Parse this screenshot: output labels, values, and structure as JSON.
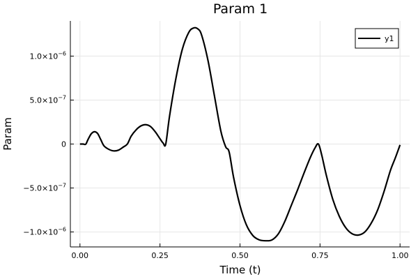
{
  "chart_data": {
    "type": "line",
    "title": "Param 1",
    "xlabel": "Time (t)",
    "ylabel": "Param",
    "xlim": [
      -0.03,
      1.03
    ],
    "ylim": [
      -1.17e-06,
      1.4e-06
    ],
    "x_ticks": [
      {
        "value": 0.0,
        "label": "0.00"
      },
      {
        "value": 0.25,
        "label": "0.25"
      },
      {
        "value": 0.5,
        "label": "0.50"
      },
      {
        "value": 0.75,
        "label": "0.75"
      },
      {
        "value": 1.0,
        "label": "1.00"
      }
    ],
    "y_ticks": [
      {
        "value": -1e-06,
        "mantissa": "−1.0×10",
        "exp": "−6"
      },
      {
        "value": -5e-07,
        "mantissa": "−5.0×10",
        "exp": "−7"
      },
      {
        "value": 0,
        "mantissa": "0",
        "exp": ""
      },
      {
        "value": 5e-07,
        "mantissa": "5.0×10",
        "exp": "−7"
      },
      {
        "value": 1e-06,
        "mantissa": "1.0×10",
        "exp": "−6"
      }
    ],
    "grid": true,
    "legend": {
      "position": "top-right",
      "entries": [
        "y1"
      ]
    },
    "colors": {
      "series": "#000000",
      "grid": "#e6e6e6"
    },
    "series": [
      {
        "name": "y1",
        "x": [
          0.0,
          0.01,
          0.018,
          0.025,
          0.035,
          0.045,
          0.055,
          0.065,
          0.075,
          0.09,
          0.105,
          0.12,
          0.135,
          0.148,
          0.16,
          0.175,
          0.19,
          0.205,
          0.22,
          0.235,
          0.25,
          0.26,
          0.268,
          0.28,
          0.3,
          0.32,
          0.34,
          0.355,
          0.368,
          0.38,
          0.4,
          0.42,
          0.44,
          0.455,
          0.466,
          0.48,
          0.5,
          0.52,
          0.54,
          0.56,
          0.58,
          0.6,
          0.62,
          0.64,
          0.66,
          0.68,
          0.7,
          0.72,
          0.735,
          0.745,
          0.755,
          0.77,
          0.79,
          0.81,
          0.83,
          0.85,
          0.87,
          0.89,
          0.91,
          0.93,
          0.95,
          0.97,
          0.985,
          1.0
        ],
        "y": [
          0,
          0,
          -2e-09,
          5e-08,
          1.15e-07,
          1.4e-07,
          1.2e-07,
          5e-08,
          -2e-08,
          -6e-08,
          -7.8e-08,
          -7e-08,
          -3.5e-08,
          0,
          9e-08,
          1.6e-07,
          2.05e-07,
          2.2e-07,
          2e-07,
          1.4e-07,
          6e-08,
          1e-08,
          0,
          3.2e-07,
          7.5e-07,
          1.08e-06,
          1.27e-06,
          1.32e-06,
          1.31e-06,
          1.24e-06,
          9.5e-07,
          5.5e-07,
          1.5e-07,
          -3e-08,
          -9e-08,
          -3.8e-07,
          -7e-07,
          -9.2e-07,
          -1.04e-06,
          -1.09e-06,
          -1.1e-06,
          -1.09e-06,
          -1.02e-06,
          -8.8e-07,
          -7e-07,
          -5.2e-07,
          -3.3e-07,
          -1.5e-07,
          -4e-08,
          0,
          -1.2e-07,
          -3.6e-07,
          -6.3e-07,
          -8.2e-07,
          -9.5e-07,
          -1.02e-06,
          -1.035e-06,
          -1e-06,
          -9e-07,
          -7.5e-07,
          -5.4e-07,
          -3e-07,
          -1.6e-07,
          -1e-08
        ]
      }
    ]
  }
}
